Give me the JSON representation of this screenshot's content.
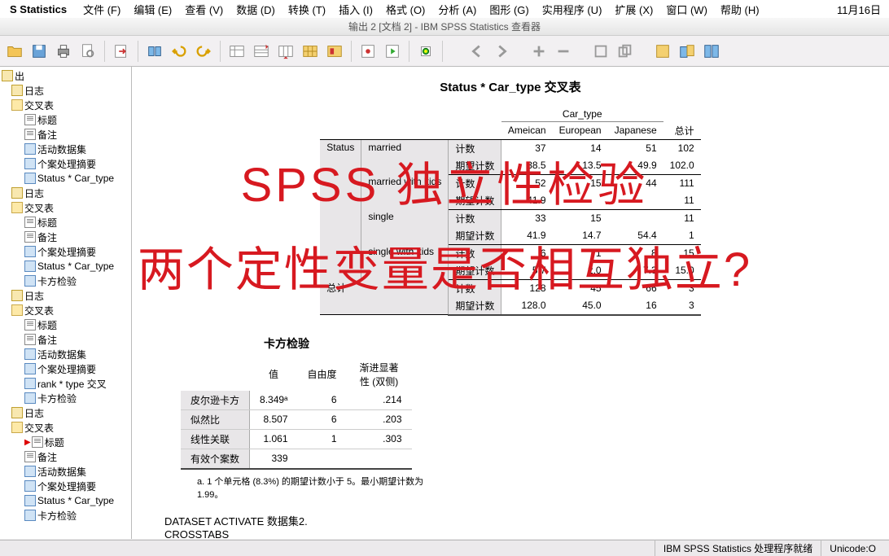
{
  "menubar": {
    "app": "S Statistics",
    "items": [
      "文件 (F)",
      "编辑 (E)",
      "查看 (V)",
      "数据 (D)",
      "转换 (T)",
      "插入 (I)",
      "格式 (O)",
      "分析 (A)",
      "图形 (G)",
      "实用程序 (U)",
      "扩展 (X)",
      "窗口 (W)",
      "帮助 (H)"
    ],
    "date": "11月16日"
  },
  "titlebar": "输出 2 [文档 2] - IBM SPSS Statistics 查看器",
  "tree": [
    {
      "lvl": 1,
      "ic": "log",
      "t": "出"
    },
    {
      "lvl": 2,
      "ic": "log",
      "t": "日志"
    },
    {
      "lvl": 2,
      "ic": "folder",
      "t": "交叉表"
    },
    {
      "lvl": 3,
      "ic": "note",
      "t": "标题"
    },
    {
      "lvl": 3,
      "ic": "note",
      "t": "备注"
    },
    {
      "lvl": 3,
      "ic": "table",
      "t": "活动数据集"
    },
    {
      "lvl": 3,
      "ic": "table",
      "t": "个案处理摘要"
    },
    {
      "lvl": 3,
      "ic": "table",
      "t": "Status * Car_type"
    },
    {
      "lvl": 2,
      "ic": "log",
      "t": "日志"
    },
    {
      "lvl": 2,
      "ic": "folder",
      "t": "交叉表"
    },
    {
      "lvl": 3,
      "ic": "note",
      "t": "标题"
    },
    {
      "lvl": 3,
      "ic": "note",
      "t": "备注"
    },
    {
      "lvl": 3,
      "ic": "table",
      "t": "个案处理摘要"
    },
    {
      "lvl": 3,
      "ic": "table",
      "t": "Status * Car_type"
    },
    {
      "lvl": 3,
      "ic": "table",
      "t": "卡方检验"
    },
    {
      "lvl": 2,
      "ic": "log",
      "t": "日志"
    },
    {
      "lvl": 2,
      "ic": "folder",
      "t": "交叉表"
    },
    {
      "lvl": 3,
      "ic": "note",
      "t": "标题"
    },
    {
      "lvl": 3,
      "ic": "note",
      "t": "备注"
    },
    {
      "lvl": 3,
      "ic": "table",
      "t": "活动数据集"
    },
    {
      "lvl": 3,
      "ic": "table",
      "t": "个案处理摘要"
    },
    {
      "lvl": 3,
      "ic": "table",
      "t": "rank * type 交叉"
    },
    {
      "lvl": 3,
      "ic": "table",
      "t": "卡方检验"
    },
    {
      "lvl": 2,
      "ic": "log",
      "t": "日志"
    },
    {
      "lvl": 2,
      "ic": "folder",
      "t": "交叉表"
    },
    {
      "lvl": 3,
      "ic": "note",
      "t": "标题",
      "arrow": true
    },
    {
      "lvl": 3,
      "ic": "note",
      "t": "备注"
    },
    {
      "lvl": 3,
      "ic": "table",
      "t": "活动数据集"
    },
    {
      "lvl": 3,
      "ic": "table",
      "t": "个案处理摘要"
    },
    {
      "lvl": 3,
      "ic": "table",
      "t": "Status * Car_type"
    },
    {
      "lvl": 3,
      "ic": "table",
      "t": "卡方检验"
    }
  ],
  "report": {
    "title": "Status * Car_type 交叉表",
    "colgroup": "Car_type",
    "cols": [
      "Ameican",
      "European",
      "Japanese"
    ],
    "total_lab": "总计",
    "rowvar": "Status",
    "count_lab": "计数",
    "expect_lab": "期望计数",
    "rows": [
      {
        "lab": "married",
        "count": [
          37,
          14,
          51,
          102
        ],
        "exp": [
          "38.5",
          "13.5",
          "49.9",
          "102.0"
        ]
      },
      {
        "lab": "married with kids",
        "count": [
          52,
          15,
          44,
          111
        ],
        "exp": [
          "41.9",
          "",
          "",
          "11"
        ]
      },
      {
        "lab": "single",
        "count": [
          33,
          15,
          "",
          11
        ],
        "exp": [
          "41.9",
          "14.7",
          "54.4",
          "1"
        ]
      },
      {
        "lab": "single with kids",
        "count": [
          6,
          1,
          8,
          15
        ],
        "exp": [
          "5.7",
          "2.0",
          "7.3",
          "15.0"
        ]
      }
    ],
    "total_row": {
      "count": [
        128,
        45,
        "66",
        "3"
      ],
      "exp": [
        "128.0",
        "45.0",
        "16",
        "3"
      ]
    }
  },
  "chi": {
    "title": "卡方检验",
    "headers": [
      "值",
      "自由度",
      "渐进显著性 (双侧)"
    ],
    "rows": [
      {
        "lab": "皮尔逊卡方",
        "v": "8.349ᵃ",
        "df": "6",
        "p": ".214"
      },
      {
        "lab": "似然比",
        "v": "8.507",
        "df": "6",
        "p": ".203"
      },
      {
        "lab": "线性关联",
        "v": "1.061",
        "df": "1",
        "p": ".303"
      },
      {
        "lab": "有效个案数",
        "v": "339",
        "df": "",
        "p": ""
      }
    ],
    "footnote": "a. 1 个单元格 (8.3%) 的期望计数小于 5。最小期望计数为 1.99。"
  },
  "syntax": [
    "DATASET ACTIVATE 数据集2.",
    "CROSSTABS"
  ],
  "overlay": {
    "l1": "SPSS 独立性检验",
    "l2": "两个定性变量是否相互独立?"
  },
  "status": {
    "left": "IBM SPSS Statistics 处理程序就绪",
    "right": "Unicode:O"
  }
}
